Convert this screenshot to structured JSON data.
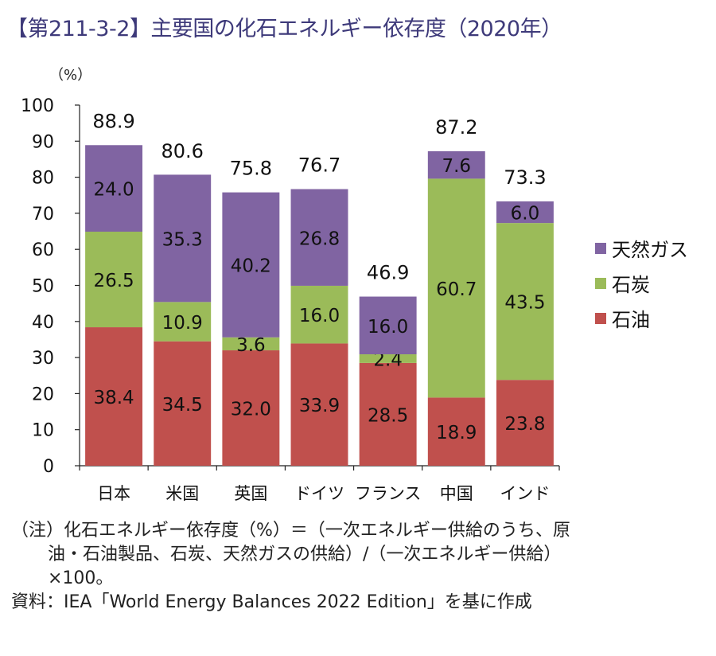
{
  "header": {
    "title": "【第211-3-2】主要国の化石エネルギー依存度（2020年）",
    "unit": "（%）"
  },
  "notes": {
    "line1": "（注）化石エネルギー依存度（%）＝（一次エネルギー供給のうち、原",
    "line2": "油・石油製品、石炭、天然ガスの供給）/（一次エネルギー供給）",
    "line3": "×100。",
    "source": "資料：IEA「World Energy Balances 2022 Edition」を基に作成"
  },
  "chart_data": {
    "type": "bar",
    "stacked": true,
    "title": "主要国の化石エネルギー依存度（2020年）",
    "xlabel": "",
    "ylabel": "（%）",
    "ylim": [
      0,
      100
    ],
    "yticks": [
      0,
      10,
      20,
      30,
      40,
      50,
      60,
      70,
      80,
      90,
      100
    ],
    "grid": false,
    "legend_position": "right",
    "categories": [
      "日本",
      "米国",
      "英国",
      "ドイツ",
      "フランス",
      "中国",
      "インド"
    ],
    "series": [
      {
        "name": "石油",
        "color": "#c0504d",
        "values": [
          38.4,
          34.5,
          32.0,
          33.9,
          28.5,
          18.9,
          23.8
        ]
      },
      {
        "name": "石炭",
        "color": "#9bbb59",
        "values": [
          26.5,
          10.9,
          3.6,
          16.0,
          2.4,
          60.7,
          43.5
        ]
      },
      {
        "name": "天然ガス",
        "color": "#8064a2",
        "values": [
          24.0,
          35.3,
          40.2,
          26.8,
          16.0,
          7.6,
          6.0
        ]
      }
    ],
    "totals": [
      88.9,
      80.6,
      75.8,
      76.7,
      46.9,
      87.2,
      73.3
    ],
    "legend": [
      "天然ガス",
      "石炭",
      "石油"
    ]
  }
}
